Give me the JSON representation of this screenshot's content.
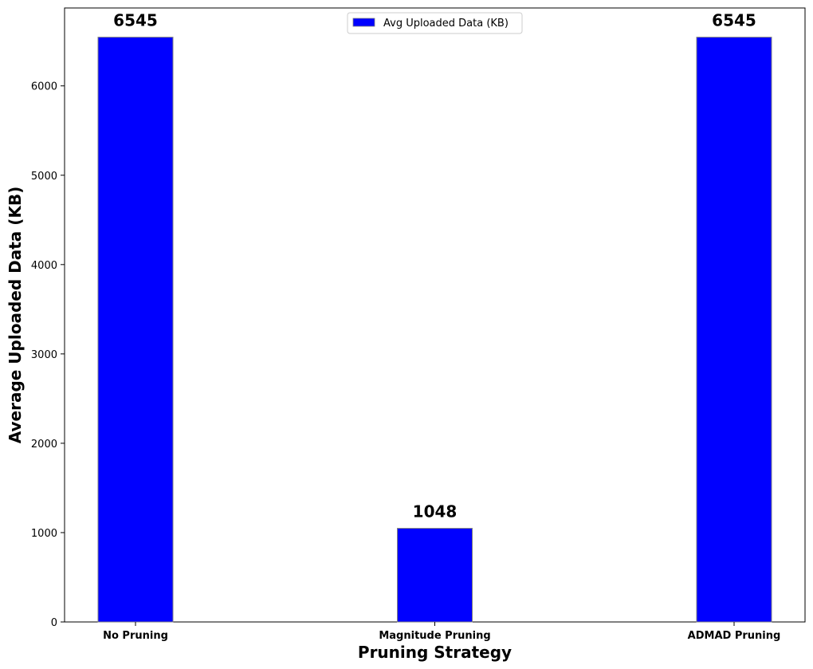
{
  "chart_data": {
    "type": "bar",
    "categories": [
      "No Pruning",
      "Magnitude Pruning",
      "ADMAD Pruning"
    ],
    "series": [
      {
        "name": "Avg Uploaded Data (KB)",
        "values": [
          6545,
          1048,
          6545
        ],
        "color": "#0000ff"
      }
    ],
    "data_labels": [
      "6545",
      "1048",
      "6545"
    ],
    "title": "",
    "xlabel": "Pruning Strategy",
    "ylabel": "Average Uploaded Data (KB)",
    "ylim": [
      0,
      6872
    ],
    "yticks": [
      0,
      1000,
      2000,
      3000,
      4000,
      5000,
      6000
    ],
    "grid": false,
    "legend": {
      "position": "top-center"
    },
    "bar_edge_color": "#808080"
  }
}
